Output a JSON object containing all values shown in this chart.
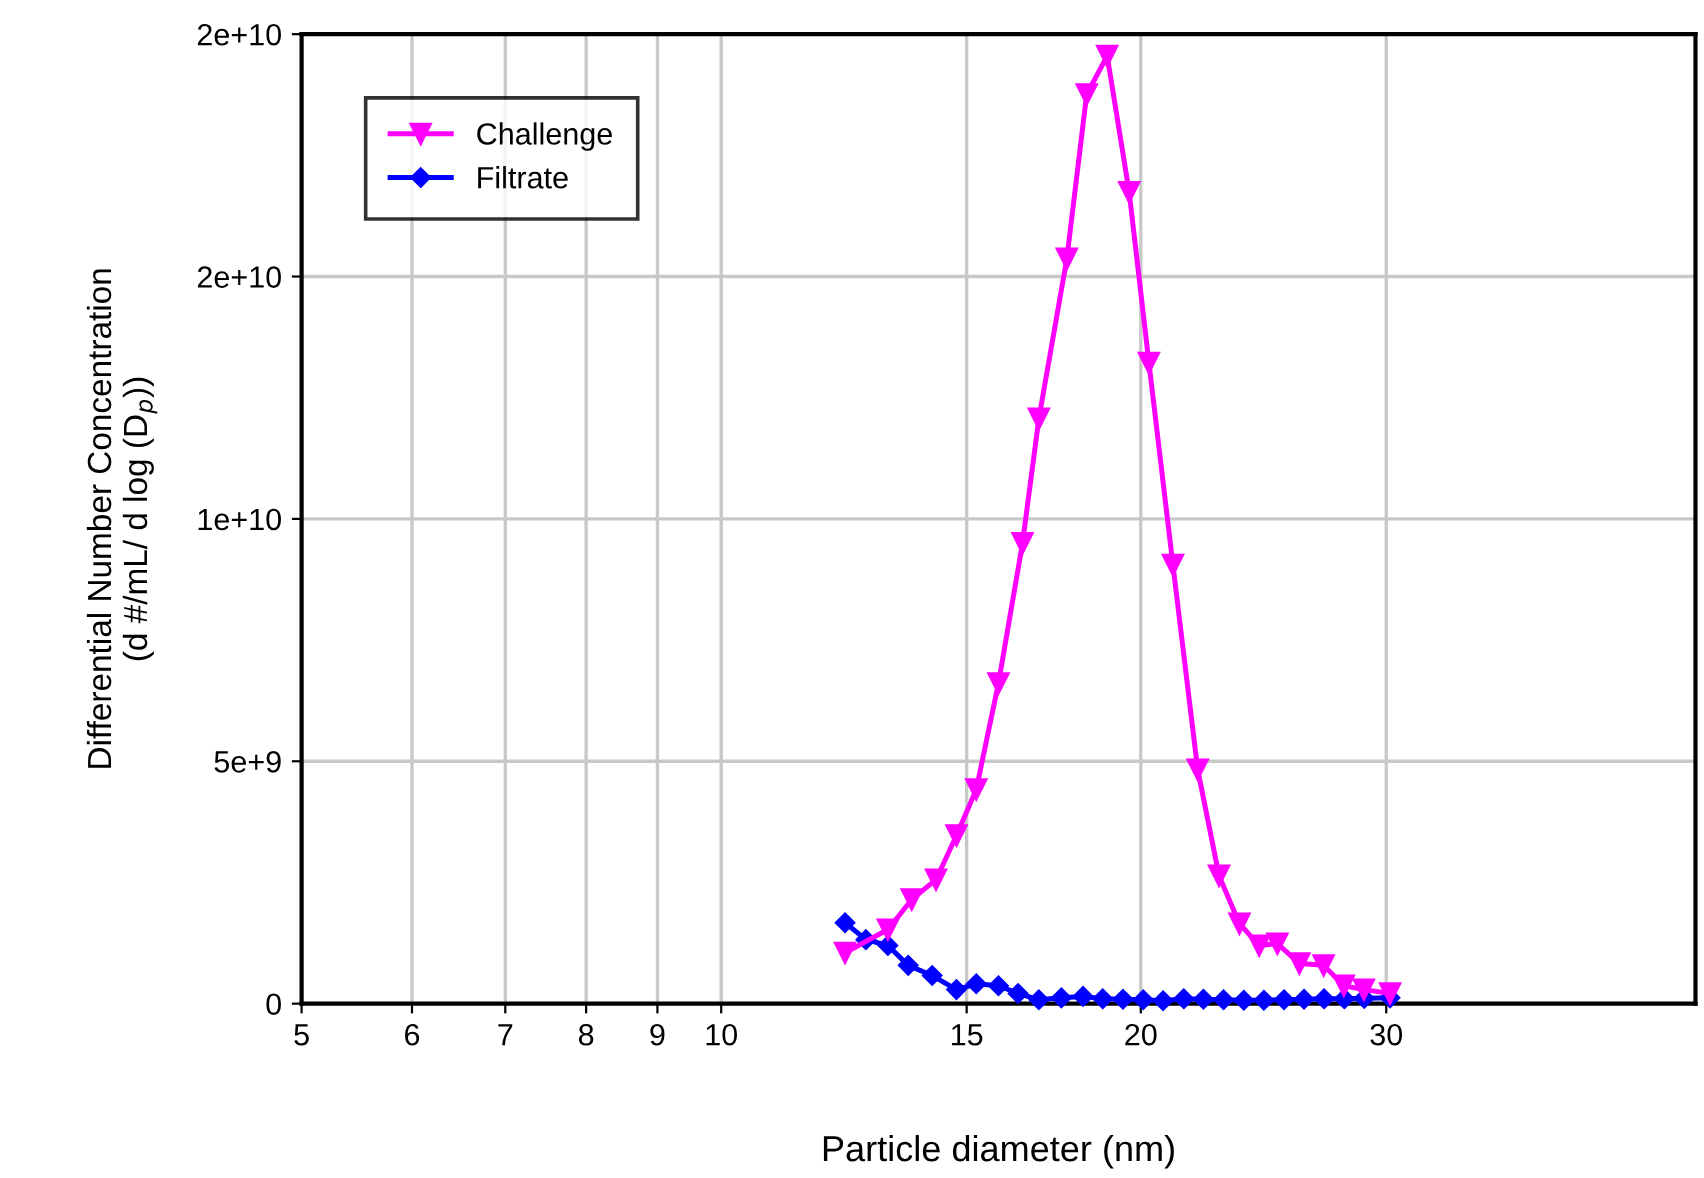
{
  "chart_data": {
    "type": "line",
    "xlabel": "Particle diameter (nm)",
    "ylabel": "Differential Number Concentration\n(d #/mL/ d log (D$_{p}$))",
    "log": "x",
    "xlim": [
      5,
      50
    ],
    "xticks": [
      5,
      6,
      7,
      8,
      9,
      10,
      15,
      20,
      30
    ],
    "ylim": [
      0,
      20000000000
    ],
    "yticks": [
      0,
      {
        "value": 5000000000,
        "label": "5e+9"
      },
      {
        "value": 10000000000,
        "label": "1e+10"
      },
      {
        "value": 15000000000,
        "label": "2e+10"
      },
      {
        "value": 20000000000,
        "label": "2e+10"
      }
    ],
    "grid": true,
    "legend": "top left",
    "series": [
      {
        "name": "Challenge",
        "color": "#ff00ff",
        "marker": "triangle",
        "x": [
          12.27,
          13.17,
          13.7,
          14.26,
          14.75,
          15.24,
          15.81,
          16.45,
          16.9,
          17.7,
          18.29,
          18.92,
          19.62,
          20.27,
          21.09,
          21.97,
          22.76,
          23.54,
          24.32,
          25.06,
          25.99,
          27.05,
          27.97,
          28.91,
          30.19
        ],
        "values": [
          1050000000,
          1530000000,
          2150000000,
          2560000000,
          3470000000,
          4420000000,
          6610000000,
          9500000000,
          12070000000,
          15370000000,
          18760000000,
          19550000000,
          16740000000,
          13220000000,
          9050000000,
          4830000000,
          2640000000,
          1650000000,
          1200000000,
          1240000000,
          830000000,
          790000000,
          370000000,
          290000000,
          210000000
        ]
      },
      {
        "name": "Filtrate",
        "color": "#0000ff",
        "marker": "diamond",
        "x": [
          12.27,
          12.7,
          13.17,
          13.62,
          14.17,
          14.75,
          15.24,
          15.81,
          16.33,
          16.9,
          17.54,
          18.18,
          18.78,
          19.42,
          20.08,
          20.75,
          21.47,
          22.18,
          22.93,
          23.71,
          24.51,
          25.34,
          26.19,
          27.07,
          27.99,
          28.93,
          30.19
        ],
        "values": [
          1670000000,
          1320000000,
          1200000000,
          790000000,
          580000000,
          290000000,
          410000000,
          370000000,
          210000000,
          80000000,
          120000000,
          150000000,
          100000000,
          90000000,
          80000000,
          60000000,
          100000000,
          90000000,
          80000000,
          70000000,
          70000000,
          80000000,
          90000000,
          100000000,
          100000000,
          110000000,
          120000000
        ]
      }
    ]
  }
}
